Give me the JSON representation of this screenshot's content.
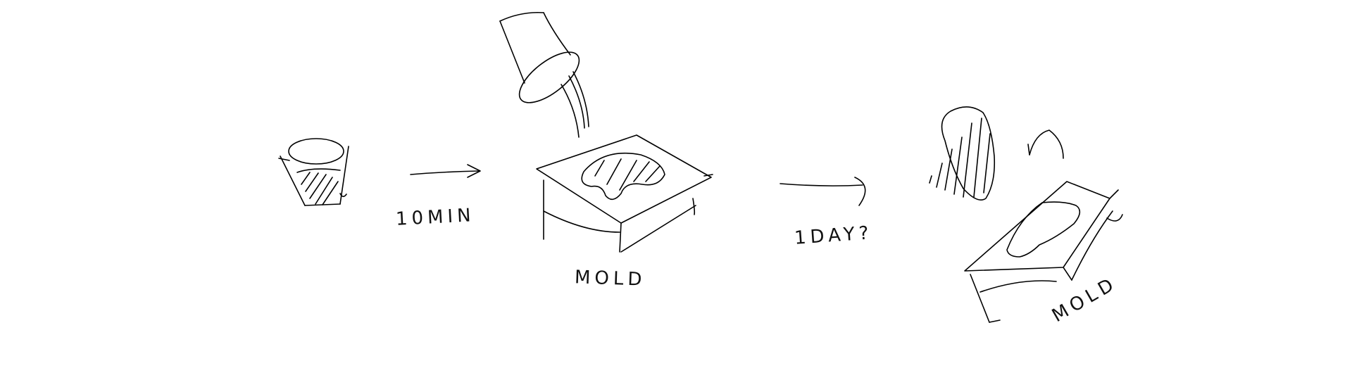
{
  "steps": {
    "mix_label": "10MIN",
    "pour_target_label": "MOLD",
    "cure_label": "1DAY?",
    "demold_label": "MOLD"
  },
  "colors": {
    "ink": "#000000",
    "background": "#ffffff"
  }
}
